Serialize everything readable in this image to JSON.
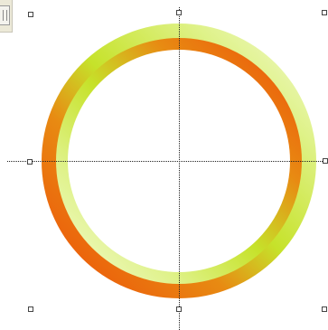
{
  "canvas": {
    "background": "#ffffff"
  },
  "shape": {
    "type": "gradient-ring",
    "selected": true,
    "outer_gradient": [
      "#ee5a10",
      "#c6e22a",
      "#f4fbd6"
    ],
    "inner_gradient": [
      "#f4fbd6",
      "#c6e22a",
      "#ee5a10"
    ]
  },
  "selection": {
    "handle_color": "#ffffff",
    "handle_border": "#444444",
    "guide_color": "#222222"
  },
  "icons": {
    "toolbar": "toolbar-fragment-icon",
    "handle": "resize-handle-icon"
  }
}
